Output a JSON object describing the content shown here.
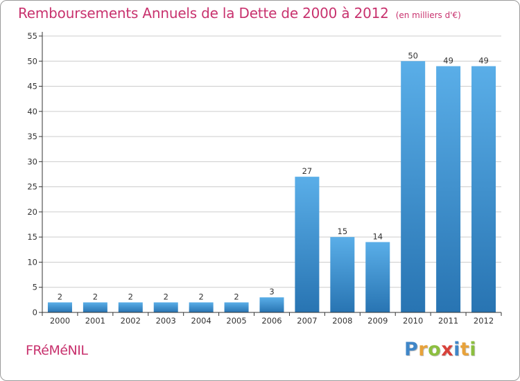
{
  "header": {
    "title": "Remboursements Annuels de la Dette de 2000 à 2012",
    "subtitle": "(en milliers d'€)"
  },
  "footer": {
    "commune": "FRéMéNIL",
    "logo_letters": [
      {
        "ch": "P",
        "color": "#3f86c8"
      },
      {
        "ch": "r",
        "color": "#e8a23a"
      },
      {
        "ch": "o",
        "color": "#8cbf3f"
      },
      {
        "ch": "x",
        "color": "#d8413a"
      },
      {
        "ch": "i",
        "color": "#3f86c8"
      },
      {
        "ch": "t",
        "color": "#e8a23a"
      },
      {
        "ch": "i",
        "color": "#8cbf3f"
      }
    ]
  },
  "colors": {
    "bar_top": "#5aaee8",
    "bar_bottom": "#2874b2",
    "grid": "#cccccc",
    "axis": "#333333",
    "accent": "#c8326e"
  },
  "chart_data": {
    "type": "bar",
    "title": "Remboursements Annuels de la Dette de 2000 à 2012",
    "subtitle": "(en milliers d'€)",
    "xlabel": "",
    "ylabel": "",
    "categories": [
      "2000",
      "2001",
      "2002",
      "2003",
      "2004",
      "2005",
      "2006",
      "2007",
      "2008",
      "2009",
      "2010",
      "2011",
      "2012"
    ],
    "values": [
      2,
      2,
      2,
      2,
      2,
      2,
      3,
      27,
      15,
      14,
      50,
      49,
      49
    ],
    "data_labels": [
      "2",
      "2",
      "2",
      "2",
      "2",
      "2",
      "3",
      "27",
      "15",
      "14",
      "50",
      "49",
      "49"
    ],
    "ylim": [
      0,
      55
    ],
    "yticks": [
      0,
      5,
      10,
      15,
      20,
      25,
      30,
      35,
      40,
      45,
      50,
      55
    ],
    "grid": true
  }
}
